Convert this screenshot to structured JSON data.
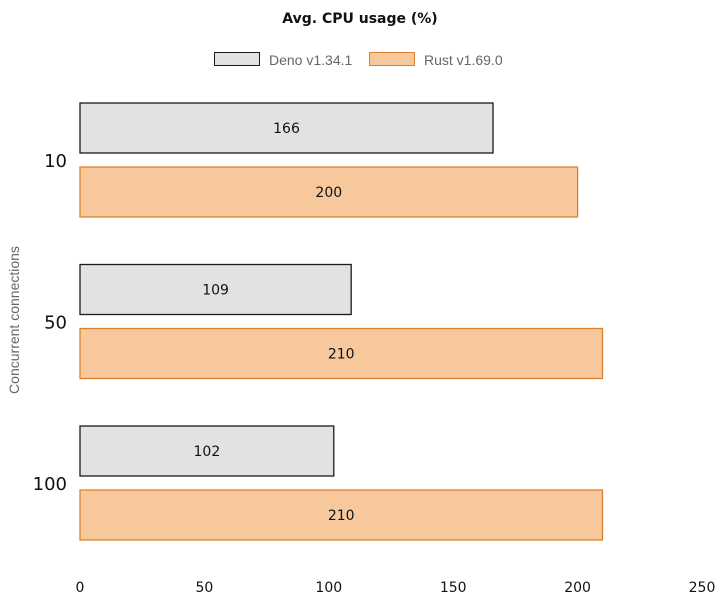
{
  "chart_data": {
    "type": "bar",
    "orientation": "horizontal",
    "title": "Avg. CPU usage (%)",
    "ylabel": "Concurrent connections",
    "xlabel": "",
    "categories": [
      "10",
      "50",
      "100"
    ],
    "series": [
      {
        "name": "Deno v1.34.1",
        "values": [
          166,
          109,
          102
        ],
        "fill": "#e2e2e2",
        "stroke": "#1a1a1a"
      },
      {
        "name": "Rust v1.69.0",
        "values": [
          200,
          210,
          210
        ],
        "fill": "#f7c89b",
        "stroke": "#d9822b"
      }
    ],
    "xlim": [
      0,
      250
    ],
    "xticks": [
      0,
      50,
      100,
      150,
      200,
      250
    ],
    "grid": false,
    "legend_position": "top-center",
    "data_labels": true
  }
}
